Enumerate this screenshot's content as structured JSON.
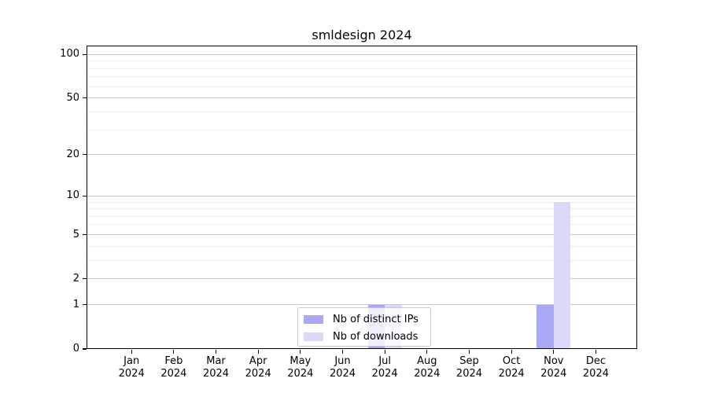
{
  "title": "smldesign 2024",
  "colors": {
    "bar_distinct_ips": "#a8a8f5",
    "bar_downloads": "#dadaf8",
    "grid_major": "#c9c9c9",
    "grid_minor": "#ededed",
    "axis": "#000000",
    "legend_border": "#c7c7c7"
  },
  "chart_data": {
    "type": "bar",
    "title": "smldesign 2024",
    "x_categories_line1": [
      "Jan",
      "Feb",
      "Mar",
      "Apr",
      "May",
      "Jun",
      "Jul",
      "Aug",
      "Sep",
      "Oct",
      "Nov",
      "Dec"
    ],
    "x_categories_line2": "2024",
    "series": [
      {
        "name": "Nb of distinct IPs",
        "color": "#a8a8f5",
        "values": [
          0,
          0,
          0,
          0,
          0,
          0,
          1,
          0,
          0,
          0,
          1,
          0
        ]
      },
      {
        "name": "Nb of downloads",
        "color": "#dadaf8",
        "values": [
          0,
          0,
          0,
          0,
          0,
          0,
          1,
          0,
          0,
          0,
          9,
          0
        ]
      }
    ],
    "y_scale": "log10(1+v)",
    "y_tick_values": [
      100,
      50,
      20,
      10,
      5,
      2,
      1,
      0
    ],
    "y_gridlines_major": [
      1,
      2,
      5,
      10,
      20,
      50,
      100
    ],
    "y_gridlines_minor": [
      3,
      4,
      6,
      7,
      8,
      9,
      30,
      40,
      60,
      70,
      80,
      90
    ],
    "ylim": [
      0,
      115
    ],
    "grid": true,
    "legend_position": "lower center",
    "legend_entries": [
      "Nb of distinct IPs",
      "Nb of downloads"
    ]
  }
}
